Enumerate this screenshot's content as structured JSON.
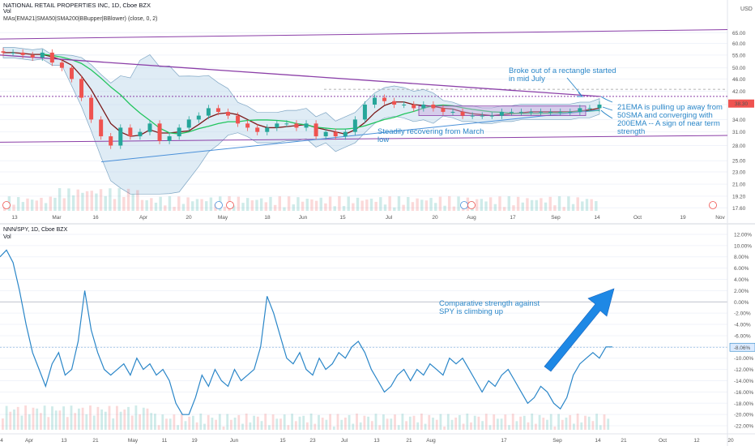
{
  "header": {
    "title": "NATIONAL RETAIL PROPERTIES INC, 1D, Cboe BZX",
    "vol": "Vol",
    "indicators": "MAs(EMA21|SMA50|SMA200|BBupper|BBlower) (close, 0, 2)",
    "currency": "USD"
  },
  "lower_header": {
    "title": "NNN/SPY, 1D, Cboe BZX",
    "vol": "Vol"
  },
  "annotations": {
    "rectangle": "Broke out of a rectangle started in mid July",
    "ema": "21EMA is pulling up away from 50SMA and converging with 200EMA -- A sign of near term strength",
    "recovering": "Steadily recovering from March low",
    "comparative": "Comparative strength against SPY is climbing up"
  },
  "colors": {
    "up": "#26a69a",
    "down": "#ef5350",
    "ema21": "#7b1a1a",
    "sma50": "#22c55e",
    "sma200": "#8b3fa8",
    "bollinger": "#7fa6c4",
    "trendline": "#4a90d9",
    "ratio": "#2a86c8",
    "arrow": "#1e88e5"
  },
  "chart_data": [
    {
      "type": "candlestick",
      "title": "NATIONAL RETAIL PROPERTIES INC, 1D, Cboe BZX",
      "x_ticks": [
        "13",
        "Mar",
        "16",
        "Apr",
        "20",
        "May",
        "18",
        "Jun",
        "15",
        "Jul",
        "20",
        "Aug",
        "17",
        "Sep",
        "14",
        "Oct",
        "19",
        "Nov"
      ],
      "y_ticks": [
        17.6,
        19.2,
        21,
        23,
        25,
        28,
        31,
        34,
        38,
        42,
        46,
        50,
        55,
        60,
        65
      ],
      "y_tick_labels": [
        "17.60",
        "19.20",
        "21.00",
        "23.00",
        "25.00",
        "28.00",
        "31.00",
        "34.00",
        "38.00",
        "42.00",
        "46.00",
        "50.00",
        "55.00",
        "60.00",
        "65.00"
      ],
      "ylim": [
        17,
        70
      ],
      "y_scale": "log",
      "last_price": "38.30",
      "resistance_level": 40.4,
      "resistance_level_2": 42.6,
      "rectangle_range": [
        35.0,
        37.6
      ],
      "series_close": [
        56,
        56,
        55,
        54,
        56,
        52,
        50,
        46,
        40,
        34,
        30,
        28,
        32,
        30,
        31,
        33,
        29,
        30,
        32,
        34,
        35,
        37,
        36,
        35,
        33,
        32,
        31,
        32,
        33,
        33,
        32,
        33,
        30,
        31,
        30,
        31,
        34,
        38,
        40,
        39,
        38,
        38,
        37,
        38,
        37,
        36,
        36,
        35,
        35,
        35,
        35,
        36,
        36,
        36,
        36,
        36,
        36,
        36,
        36,
        37,
        37,
        38
      ]
    },
    {
      "type": "line",
      "title": "NNN/SPY, 1D, Cboe BZX",
      "x_ticks": [
        "4",
        "Apr",
        "13",
        "21",
        "May",
        "11",
        "19",
        "Jun",
        "15",
        "23",
        "Jul",
        "13",
        "21",
        "Aug",
        "17",
        "Sep",
        "14",
        "21",
        "Oct",
        "12",
        "20"
      ],
      "y_ticks": [
        12,
        10,
        8,
        6,
        4,
        2,
        0,
        -2,
        -4,
        -6,
        -8,
        -10,
        -12,
        -14,
        -16,
        -18,
        -20,
        -22
      ],
      "y_tick_labels": [
        "12.00%",
        "10.00%",
        "8.00%",
        "6.00%",
        "4.00%",
        "2.00%",
        "0.00%",
        "-2.00%",
        "-4.00%",
        "-6.00%",
        "-8.00%",
        "-10.00%",
        "-12.00%",
        "-14.00%",
        "-16.00%",
        "-18.00%",
        "-20.00%",
        "-22.00%"
      ],
      "ylim": [
        -23,
        13
      ],
      "last_value": "-8.06%",
      "values": [
        8,
        9.2,
        7,
        2,
        -4,
        -9,
        -12,
        -15,
        -11,
        -9,
        -13,
        -12,
        -7,
        2,
        -5,
        -9,
        -12,
        -13,
        -12,
        -11,
        -13,
        -10,
        -12,
        -11,
        -13,
        -12,
        -14,
        -18,
        -20,
        -20,
        -17,
        -13,
        -15,
        -12,
        -14,
        -15,
        -12,
        -14,
        -13,
        -12,
        -8,
        1,
        -2,
        -6,
        -10,
        -11,
        -9,
        -12,
        -13,
        -10,
        -12,
        -11,
        -9,
        -10,
        -8,
        -7,
        -9,
        -12,
        -14,
        -16,
        -15,
        -13,
        -12,
        -14,
        -12,
        -13,
        -11,
        -12,
        -13,
        -10,
        -11,
        -10,
        -12,
        -14,
        -16,
        -14,
        -15,
        -13,
        -12,
        -14,
        -16,
        -18,
        -17,
        -15,
        -16,
        -18,
        -19,
        -17,
        -13,
        -11,
        -10,
        -9,
        -10,
        -8,
        -8
      ]
    }
  ]
}
